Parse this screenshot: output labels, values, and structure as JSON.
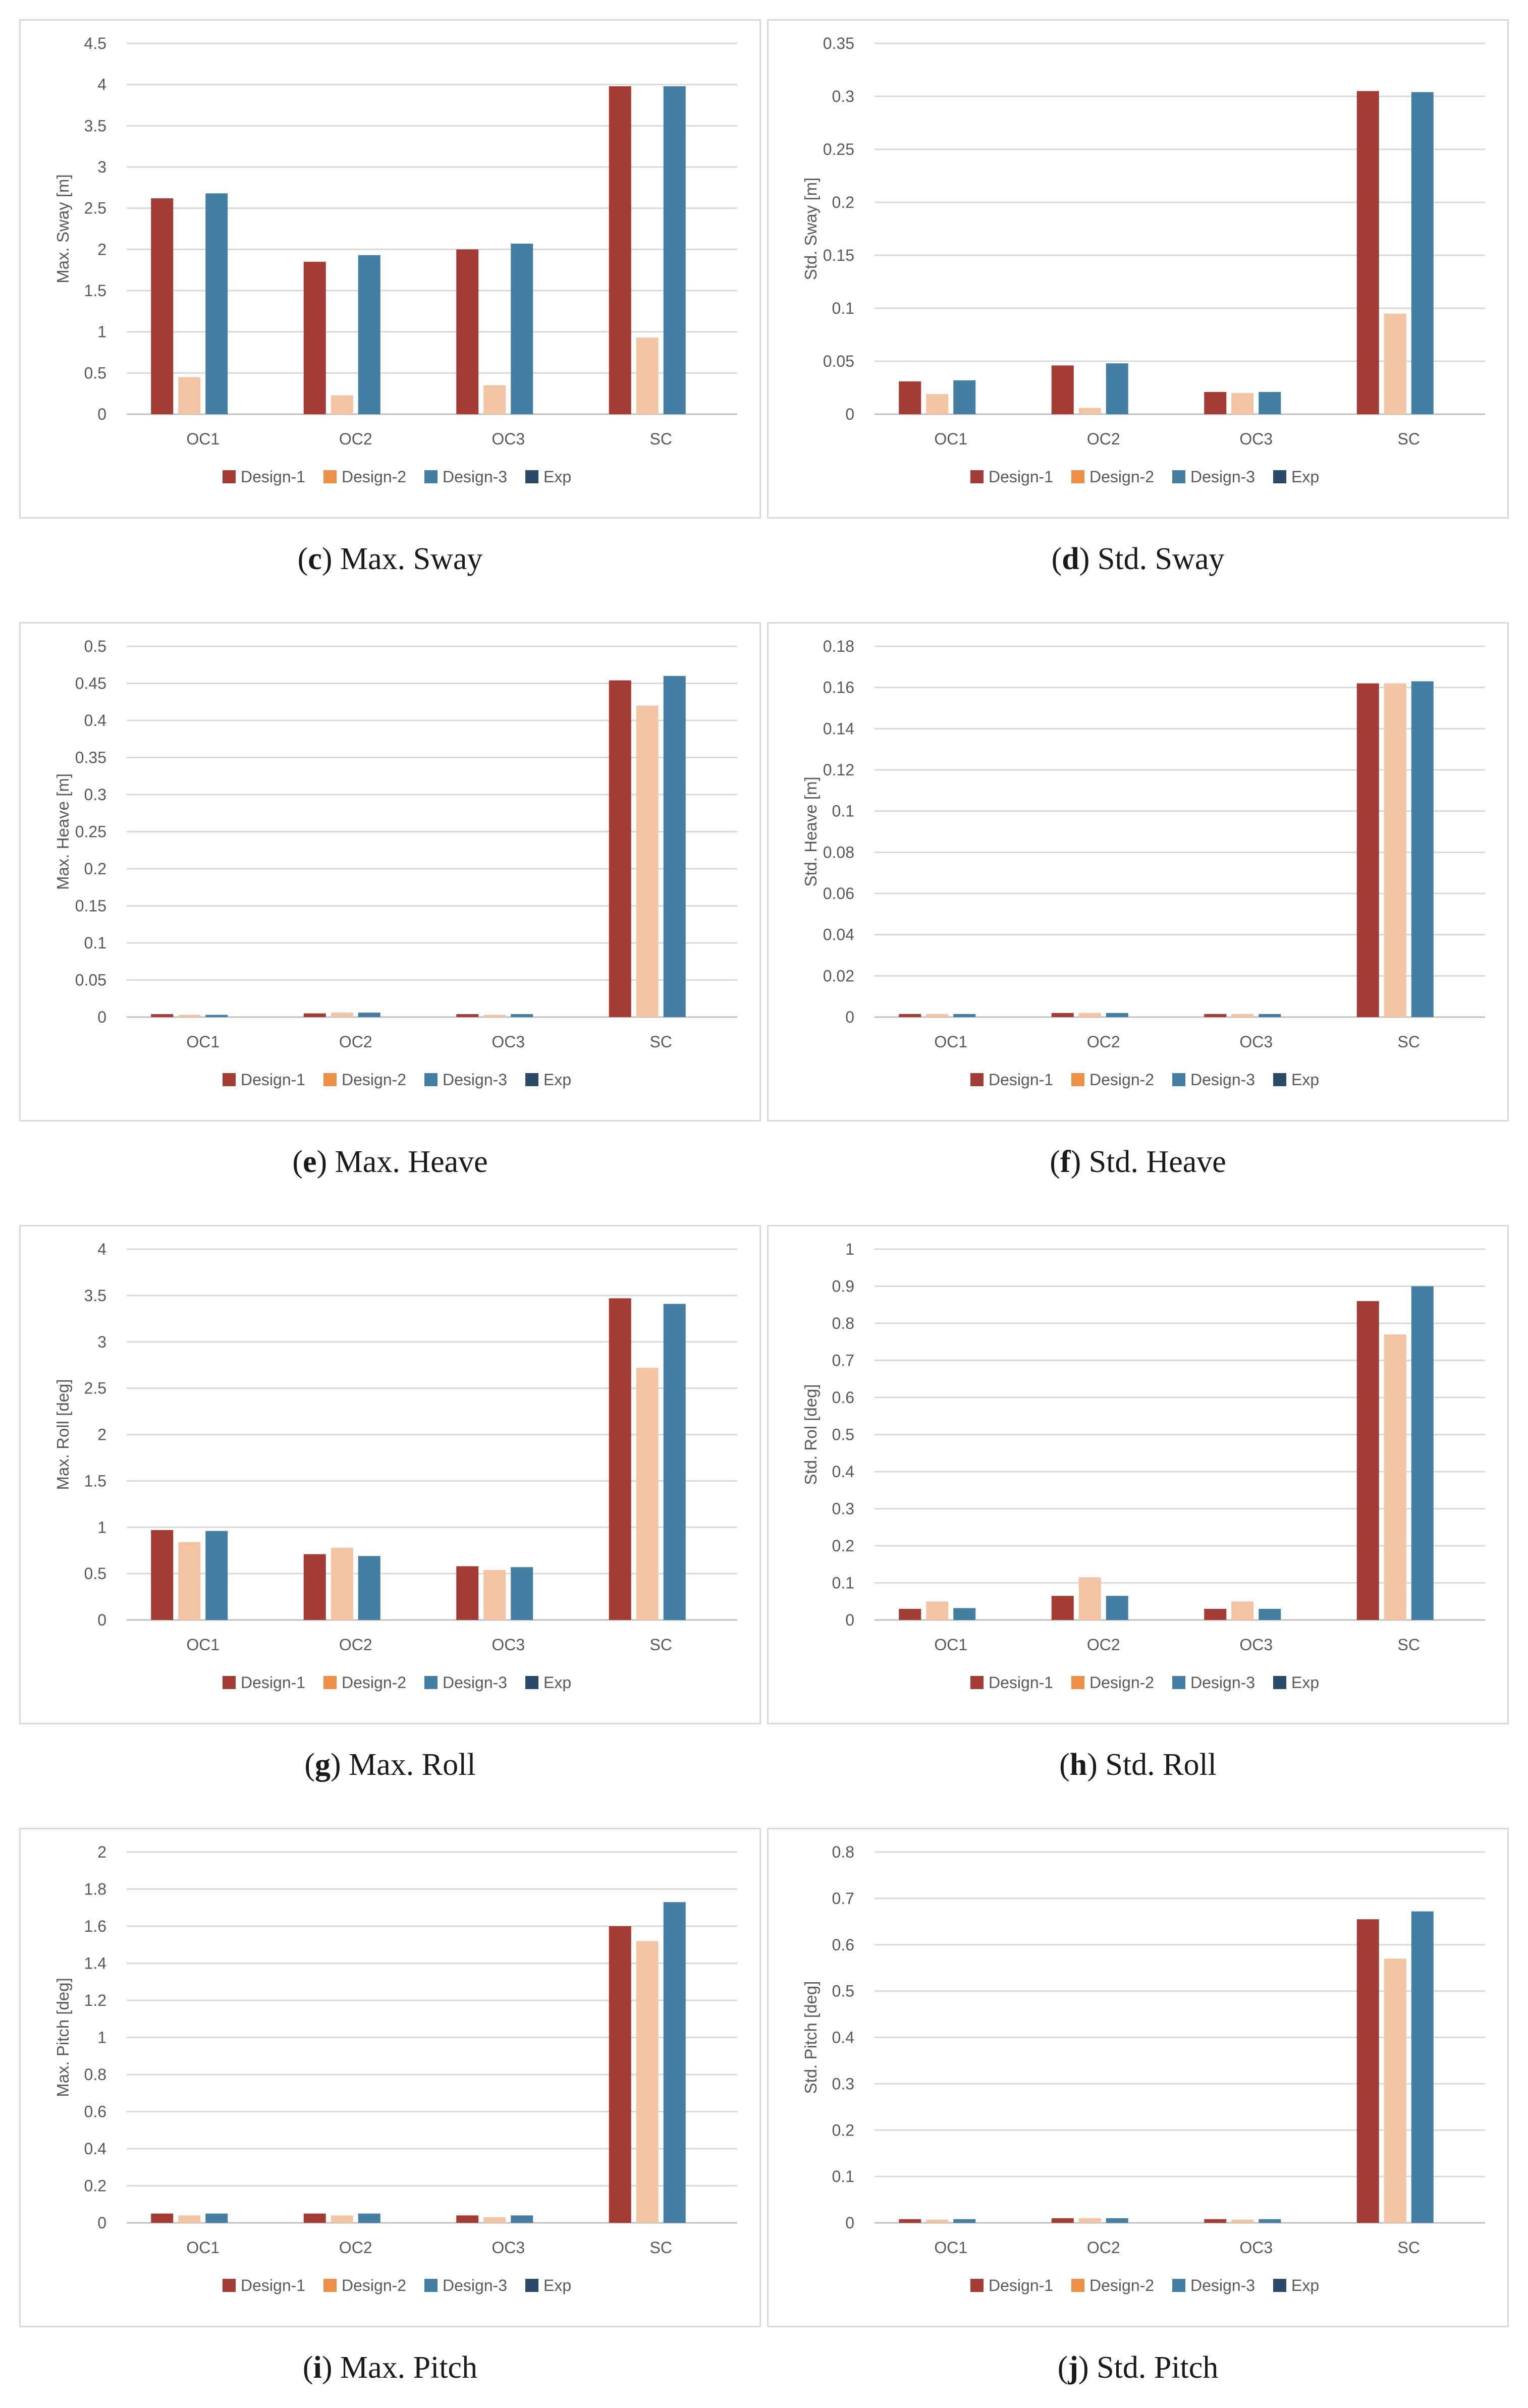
{
  "colors": {
    "Design-1": "#a33c35",
    "Design-2": "#f2c4a3",
    "Design-3": "#447ea2",
    "Exp": "#2b4969",
    "legend_Design-2": "#ed8f46",
    "grid": "#d9d9d9",
    "axis": "#bfbfbf",
    "text": "#595959"
  },
  "legend_labels": [
    "Design-1",
    "Design-2",
    "Design-3",
    "Exp"
  ],
  "chart_data": [
    {
      "id": "c",
      "type": "bar",
      "caption_letter": "c",
      "caption_text": "Max. Sway",
      "ylabel": "Max. Sway [m]",
      "categories": [
        "OC1",
        "OC2",
        "OC3",
        "SC"
      ],
      "ylim": [
        0,
        4.5
      ],
      "yticks": [
        "0",
        "0.5",
        "1",
        "1.5",
        "2",
        "2.5",
        "3",
        "3.5",
        "4",
        "4.5"
      ],
      "series": [
        {
          "name": "Design-1",
          "values": [
            2.62,
            1.85,
            2.0,
            3.98
          ]
        },
        {
          "name": "Design-2",
          "values": [
            0.45,
            0.23,
            0.35,
            0.93
          ]
        },
        {
          "name": "Design-3",
          "values": [
            2.68,
            1.93,
            2.07,
            3.98
          ]
        },
        {
          "name": "Exp",
          "values": [
            0,
            0,
            0,
            0
          ]
        }
      ]
    },
    {
      "id": "d",
      "type": "bar",
      "caption_letter": "d",
      "caption_text": "Std. Sway",
      "ylabel": "Std. Sway [m]",
      "categories": [
        "OC1",
        "OC2",
        "OC3",
        "SC"
      ],
      "ylim": [
        0,
        0.35
      ],
      "yticks": [
        "0",
        "0.05",
        "0.1",
        "0.15",
        "0.2",
        "0.25",
        "0.3",
        "0.35"
      ],
      "series": [
        {
          "name": "Design-1",
          "values": [
            0.031,
            0.046,
            0.021,
            0.305
          ]
        },
        {
          "name": "Design-2",
          "values": [
            0.019,
            0.006,
            0.02,
            0.095
          ]
        },
        {
          "name": "Design-3",
          "values": [
            0.032,
            0.048,
            0.021,
            0.304
          ]
        },
        {
          "name": "Exp",
          "values": [
            0,
            0,
            0,
            0
          ]
        }
      ]
    },
    {
      "id": "e",
      "type": "bar",
      "caption_letter": "e",
      "caption_text": "Max. Heave",
      "ylabel": "Max. Heave [m]",
      "categories": [
        "OC1",
        "OC2",
        "OC3",
        "SC"
      ],
      "ylim": [
        0,
        0.5
      ],
      "yticks": [
        "0",
        "0.05",
        "0.1",
        "0.15",
        "0.2",
        "0.25",
        "0.3",
        "0.35",
        "0.4",
        "0.45",
        "0.5"
      ],
      "series": [
        {
          "name": "Design-1",
          "values": [
            0.004,
            0.005,
            0.004,
            0.454
          ]
        },
        {
          "name": "Design-2",
          "values": [
            0.003,
            0.006,
            0.003,
            0.42
          ]
        },
        {
          "name": "Design-3",
          "values": [
            0.003,
            0.006,
            0.004,
            0.46
          ]
        },
        {
          "name": "Exp",
          "values": [
            0,
            0,
            0,
            0
          ]
        }
      ]
    },
    {
      "id": "f",
      "type": "bar",
      "caption_letter": "f",
      "caption_text": "Std. Heave",
      "ylabel": "Std. Heave [m]",
      "categories": [
        "OC1",
        "OC2",
        "OC3",
        "SC"
      ],
      "ylim": [
        0,
        0.18
      ],
      "yticks": [
        "0",
        "0.02",
        "0.04",
        "0.06",
        "0.08",
        "0.1",
        "0.12",
        "0.14",
        "0.16",
        "0.18"
      ],
      "series": [
        {
          "name": "Design-1",
          "values": [
            0.0015,
            0.002,
            0.0015,
            0.162
          ]
        },
        {
          "name": "Design-2",
          "values": [
            0.0015,
            0.002,
            0.0015,
            0.162
          ]
        },
        {
          "name": "Design-3",
          "values": [
            0.0015,
            0.002,
            0.0015,
            0.163
          ]
        },
        {
          "name": "Exp",
          "values": [
            0,
            0,
            0,
            0
          ]
        }
      ]
    },
    {
      "id": "g",
      "type": "bar",
      "caption_letter": "g",
      "caption_text": "Max. Roll",
      "ylabel": "Max. Roll [deg]",
      "categories": [
        "OC1",
        "OC2",
        "OC3",
        "SC"
      ],
      "ylim": [
        0,
        4
      ],
      "yticks": [
        "0",
        "0.5",
        "1",
        "1.5",
        "2",
        "2.5",
        "3",
        "3.5",
        "4"
      ],
      "series": [
        {
          "name": "Design-1",
          "values": [
            0.97,
            0.71,
            0.58,
            3.47
          ]
        },
        {
          "name": "Design-2",
          "values": [
            0.84,
            0.78,
            0.54,
            2.72
          ]
        },
        {
          "name": "Design-3",
          "values": [
            0.96,
            0.69,
            0.57,
            3.41
          ]
        },
        {
          "name": "Exp",
          "values": [
            0,
            0,
            0,
            0
          ]
        }
      ]
    },
    {
      "id": "h",
      "type": "bar",
      "caption_letter": "h",
      "caption_text": "Std. Roll",
      "ylabel": "Std. Rol [deg]",
      "categories": [
        "OC1",
        "OC2",
        "OC3",
        "SC"
      ],
      "ylim": [
        0,
        1
      ],
      "yticks": [
        "0",
        "0.1",
        "0.2",
        "0.3",
        "0.4",
        "0.5",
        "0.6",
        "0.7",
        "0.8",
        "0.9",
        "1"
      ],
      "series": [
        {
          "name": "Design-1",
          "values": [
            0.03,
            0.065,
            0.03,
            0.86
          ]
        },
        {
          "name": "Design-2",
          "values": [
            0.05,
            0.115,
            0.05,
            0.77
          ]
        },
        {
          "name": "Design-3",
          "values": [
            0.032,
            0.065,
            0.03,
            0.9
          ]
        },
        {
          "name": "Exp",
          "values": [
            0,
            0,
            0,
            0
          ]
        }
      ]
    },
    {
      "id": "i",
      "type": "bar",
      "caption_letter": "i",
      "caption_text": "Max. Pitch",
      "ylabel": "Max. Pitch [deg]",
      "categories": [
        "OC1",
        "OC2",
        "OC3",
        "SC"
      ],
      "ylim": [
        0,
        2
      ],
      "yticks": [
        "0",
        "0.2",
        "0.4",
        "0.6",
        "0.8",
        "1",
        "1.2",
        "1.4",
        "1.6",
        "1.8",
        "2"
      ],
      "series": [
        {
          "name": "Design-1",
          "values": [
            0.05,
            0.05,
            0.04,
            1.6
          ]
        },
        {
          "name": "Design-2",
          "values": [
            0.04,
            0.04,
            0.03,
            1.52
          ]
        },
        {
          "name": "Design-3",
          "values": [
            0.05,
            0.05,
            0.04,
            1.73
          ]
        },
        {
          "name": "Exp",
          "values": [
            0,
            0,
            0,
            0
          ]
        }
      ]
    },
    {
      "id": "j",
      "type": "bar",
      "caption_letter": "j",
      "caption_text": "Std. Pitch",
      "ylabel": "Std. Pitch [deg]",
      "categories": [
        "OC1",
        "OC2",
        "OC3",
        "SC"
      ],
      "ylim": [
        0,
        0.8
      ],
      "yticks": [
        "0",
        "0.1",
        "0.2",
        "0.3",
        "0.4",
        "0.5",
        "0.6",
        "0.7",
        "0.8"
      ],
      "series": [
        {
          "name": "Design-1",
          "values": [
            0.008,
            0.01,
            0.008,
            0.655
          ]
        },
        {
          "name": "Design-2",
          "values": [
            0.007,
            0.01,
            0.007,
            0.57
          ]
        },
        {
          "name": "Design-3",
          "values": [
            0.008,
            0.01,
            0.008,
            0.672
          ]
        },
        {
          "name": "Exp",
          "values": [
            0,
            0,
            0,
            0
          ]
        }
      ]
    }
  ]
}
